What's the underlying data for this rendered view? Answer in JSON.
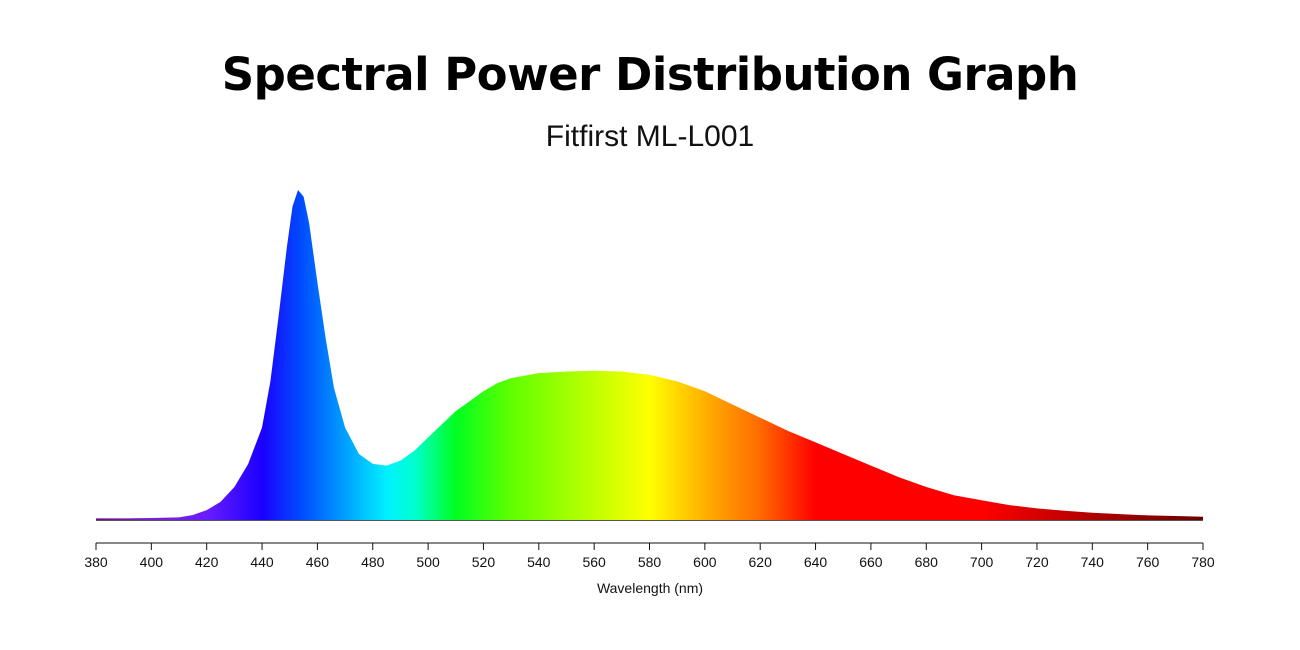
{
  "title": "Spectral Power Distribution Graph",
  "subtitle": "Fitfirst ML-L001",
  "chart_data": {
    "type": "area",
    "title": "Spectral Power Distribution Graph",
    "subtitle": "Fitfirst ML-L001",
    "xlabel": "Wavelength (nm)",
    "ylabel": "",
    "xlim": [
      380,
      780
    ],
    "ylim": [
      0,
      1
    ],
    "grid": false,
    "x_ticks": [
      380,
      400,
      420,
      440,
      460,
      480,
      500,
      520,
      540,
      560,
      580,
      600,
      620,
      640,
      660,
      680,
      700,
      720,
      740,
      760,
      780
    ],
    "tick_labels": [
      "380",
      "400",
      "420",
      "440",
      "460",
      "480",
      "500",
      "520",
      "540",
      "560",
      "580",
      "600",
      "620",
      "640",
      "660",
      "680",
      "700",
      "720",
      "740",
      "760",
      "780"
    ],
    "fill": "visible-spectrum gradient",
    "series": [
      {
        "x": [
          380,
          390,
          400,
          410,
          415,
          420,
          425,
          430,
          435,
          440,
          443,
          446,
          449,
          451,
          453,
          455,
          457,
          460,
          463,
          466,
          470,
          475,
          480,
          485,
          490,
          495,
          500,
          505,
          510,
          515,
          520,
          525,
          530,
          540,
          550,
          560,
          570,
          580,
          590,
          600,
          610,
          620,
          630,
          640,
          650,
          660,
          670,
          680,
          690,
          700,
          710,
          720,
          730,
          740,
          750,
          760,
          770,
          780
        ],
        "y": [
          0.005,
          0.005,
          0.006,
          0.008,
          0.015,
          0.03,
          0.055,
          0.1,
          0.17,
          0.28,
          0.42,
          0.62,
          0.83,
          0.95,
          1.0,
          0.98,
          0.9,
          0.72,
          0.55,
          0.4,
          0.28,
          0.2,
          0.17,
          0.165,
          0.18,
          0.21,
          0.25,
          0.29,
          0.33,
          0.36,
          0.39,
          0.415,
          0.43,
          0.445,
          0.45,
          0.452,
          0.45,
          0.44,
          0.42,
          0.39,
          0.35,
          0.31,
          0.27,
          0.235,
          0.2,
          0.165,
          0.13,
          0.1,
          0.075,
          0.06,
          0.045,
          0.035,
          0.028,
          0.022,
          0.018,
          0.014,
          0.012,
          0.01
        ]
      }
    ]
  }
}
